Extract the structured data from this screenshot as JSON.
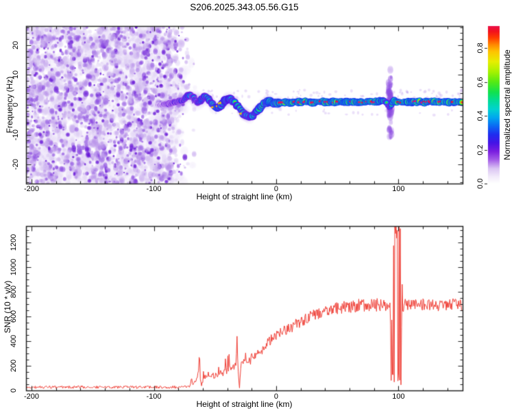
{
  "figure": {
    "title": "S206.2025.343.05.56.G15",
    "background": "#ffffff",
    "axis_color": "#222222"
  },
  "chart_data": [
    {
      "type": "heatmap",
      "name": "spectrogram",
      "xlabel": "Height of straight line (km)",
      "ylabel": "Frequency (Hz)",
      "xlim": [
        -204.5,
        152.4
      ],
      "ylim": [
        -26.4,
        26.4
      ],
      "x_ticks": [
        {
          "v": -200,
          "label": "-200"
        },
        {
          "v": -100,
          "label": "-100"
        },
        {
          "v": 0,
          "label": "0"
        },
        {
          "v": 100,
          "label": "100"
        }
      ],
      "x_minor_step": 20,
      "y_ticks": [
        {
          "v": -20,
          "label": "-20"
        },
        {
          "v": -10,
          "label": "-10"
        },
        {
          "v": 0,
          "label": "0"
        },
        {
          "v": 10,
          "label": "10"
        },
        {
          "v": 20,
          "label": "20"
        }
      ],
      "y_minor_step": 2,
      "colormap_stops": [
        [
          0.0,
          "#ffffff"
        ],
        [
          0.04,
          "#f3ecfb"
        ],
        [
          0.09,
          "#dac4f3"
        ],
        [
          0.14,
          "#a55ee8"
        ],
        [
          0.19,
          "#7a1ee0"
        ],
        [
          0.24,
          "#4513e6"
        ],
        [
          0.29,
          "#1f2df0"
        ],
        [
          0.34,
          "#0b6af4"
        ],
        [
          0.39,
          "#00a8ef"
        ],
        [
          0.44,
          "#00d3cf"
        ],
        [
          0.49,
          "#00dc96"
        ],
        [
          0.54,
          "#12e24d"
        ],
        [
          0.6,
          "#55ea14"
        ],
        [
          0.66,
          "#a7f200"
        ],
        [
          0.72,
          "#e7ee00"
        ],
        [
          0.78,
          "#ffc300"
        ],
        [
          0.82,
          "#ff8800"
        ],
        [
          0.86,
          "#ff3c00"
        ],
        [
          0.9,
          "#f2101f"
        ],
        [
          0.94,
          "#e9135a"
        ],
        [
          1.0,
          "#e41a78"
        ]
      ],
      "colorbar": {
        "label": "Normalized spectral amplitude",
        "vmax": 0.93,
        "ticks": [
          {
            "v": 0.0,
            "label": "0.0"
          },
          {
            "v": 0.2,
            "label": "0.2"
          },
          {
            "v": 0.4,
            "label": "0.4"
          },
          {
            "v": 0.6,
            "label": "0.6"
          },
          {
            "v": 0.8,
            "label": "0.8"
          }
        ]
      },
      "noise_field": {
        "x_range": [
          -204.5,
          -64
        ],
        "dense_until": -93,
        "fade_until": -72,
        "colors": [
          "#d8c6f2",
          "#b38ae8",
          "#8a4ae0",
          "#6716d6"
        ]
      },
      "trace_points": [
        [
          -97,
          0.2,
          0.22
        ],
        [
          -94,
          -0.1,
          0.25
        ],
        [
          -91,
          0.1,
          0.28
        ],
        [
          -88,
          0.3,
          0.34
        ],
        [
          -85,
          0.5,
          0.38
        ],
        [
          -82,
          0.9,
          0.42
        ],
        [
          -79,
          1.3,
          0.46
        ],
        [
          -76,
          1.6,
          0.5
        ],
        [
          -73,
          2.6,
          0.52
        ],
        [
          -70,
          3.2,
          0.55
        ],
        [
          -68,
          2.6,
          0.52
        ],
        [
          -66,
          1.6,
          0.5
        ],
        [
          -64,
          0.6,
          0.52
        ],
        [
          -62,
          1.2,
          0.56
        ],
        [
          -60,
          2.2,
          0.6
        ],
        [
          -58,
          2.8,
          0.6
        ],
        [
          -56,
          2.2,
          0.6
        ],
        [
          -54,
          1.2,
          0.62
        ],
        [
          -52,
          0.2,
          0.66
        ],
        [
          -50,
          -0.6,
          0.72
        ],
        [
          -48,
          -1.2,
          0.78
        ],
        [
          -46,
          -0.6,
          0.72
        ],
        [
          -44,
          0.4,
          0.7
        ],
        [
          -42,
          1.2,
          0.72
        ],
        [
          -40,
          1.8,
          0.72
        ],
        [
          -38,
          2.2,
          0.7
        ],
        [
          -36,
          1.6,
          0.66
        ],
        [
          -34,
          0.8,
          0.64
        ],
        [
          -32,
          -0.2,
          0.66
        ],
        [
          -30,
          -1.2,
          0.7
        ],
        [
          -28,
          -2.2,
          0.72
        ],
        [
          -26,
          -3.2,
          0.7
        ],
        [
          -24,
          -3.8,
          0.66
        ],
        [
          -22,
          -4.2,
          0.62
        ],
        [
          -20,
          -4.0,
          0.64
        ],
        [
          -18,
          -3.2,
          0.68
        ],
        [
          -16,
          -2.2,
          0.72
        ],
        [
          -14,
          -1.2,
          0.76
        ],
        [
          -12,
          -0.4,
          0.8
        ],
        [
          -10,
          0.2,
          0.8
        ],
        [
          -8,
          0.7,
          0.82
        ],
        [
          -6,
          1.0,
          0.84
        ],
        [
          -4,
          0.9,
          0.86
        ],
        [
          -2,
          0.7,
          0.86
        ],
        [
          0,
          0.6,
          0.88
        ],
        [
          4,
          0.9,
          0.9
        ],
        [
          8,
          1.1,
          0.88
        ],
        [
          12,
          0.8,
          0.9
        ],
        [
          16,
          1.0,
          0.9
        ],
        [
          20,
          0.9,
          0.9
        ],
        [
          25,
          1.0,
          0.9
        ],
        [
          30,
          0.9,
          0.91
        ],
        [
          35,
          1.0,
          0.9
        ],
        [
          40,
          0.9,
          0.92
        ],
        [
          45,
          1.0,
          0.9
        ],
        [
          50,
          0.9,
          0.92
        ],
        [
          55,
          1.0,
          0.9
        ],
        [
          60,
          0.9,
          0.92
        ],
        [
          65,
          1.0,
          0.91
        ],
        [
          70,
          0.9,
          0.92
        ],
        [
          75,
          1.0,
          0.91
        ],
        [
          80,
          1.0,
          0.92
        ],
        [
          85,
          1.1,
          0.9
        ],
        [
          88,
          1.4,
          0.78
        ],
        [
          90,
          0.8,
          0.6
        ],
        [
          91.5,
          -0.6,
          0.5
        ],
        [
          93,
          -1.3,
          0.52
        ],
        [
          94.5,
          0.3,
          0.62
        ],
        [
          96,
          1.3,
          0.8
        ],
        [
          97.5,
          1.1,
          0.95
        ],
        [
          99,
          1.0,
          0.9
        ],
        [
          101,
          0.9,
          0.9
        ],
        [
          105,
          1.0,
          0.91
        ],
        [
          110,
          0.9,
          0.92
        ],
        [
          115,
          1.0,
          0.91
        ],
        [
          120,
          0.9,
          0.92
        ],
        [
          125,
          1.0,
          0.91
        ],
        [
          130,
          0.9,
          0.92
        ],
        [
          135,
          1.0,
          0.91
        ],
        [
          140,
          0.9,
          0.92
        ],
        [
          146,
          1.0,
          0.91
        ],
        [
          152.4,
          1.0,
          0.92
        ]
      ],
      "disturbance": {
        "x_center": 93,
        "x_spread": 3.2,
        "f_range": [
          -13,
          13
        ],
        "n_blobs": 80
      },
      "fuzz_band": {
        "x_range": [
          -62,
          152
        ],
        "f_above": [
          2,
          5
        ],
        "f_below": [
          -3.5,
          -1.5
        ],
        "n_blobs": 110
      }
    },
    {
      "type": "line",
      "name": "snr",
      "xlabel": "Height of straight line (km)",
      "ylabel": "SNR (10 * v/v)",
      "xlim": [
        -204.5,
        152.4
      ],
      "ylim": [
        0,
        1333
      ],
      "line_color": "#ee3b32",
      "x_ticks": [
        {
          "v": -200,
          "label": "-200"
        },
        {
          "v": -100,
          "label": "-100"
        },
        {
          "v": 0,
          "label": "0"
        },
        {
          "v": 100,
          "label": "100"
        }
      ],
      "x_minor_step": 20,
      "y_ticks": [
        {
          "v": 0,
          "label": "0"
        },
        {
          "v": 200,
          "label": "200"
        },
        {
          "v": 400,
          "label": "400"
        },
        {
          "v": 600,
          "label": "600"
        },
        {
          "v": 800,
          "label": "800"
        },
        {
          "v": 1000,
          "label": "1000"
        },
        {
          "v": 1200,
          "label": "1200"
        }
      ],
      "y_minor_step": 50,
      "envelope": [
        [
          -204.5,
          25
        ],
        [
          -190,
          27
        ],
        [
          -175,
          25
        ],
        [
          -160,
          28
        ],
        [
          -145,
          26
        ],
        [
          -130,
          27
        ],
        [
          -115,
          26
        ],
        [
          -100,
          27
        ],
        [
          -90,
          26
        ],
        [
          -80,
          27
        ],
        [
          -75,
          28
        ],
        [
          -71,
          34
        ],
        [
          -69,
          85
        ],
        [
          -68,
          55
        ],
        [
          -66,
          70
        ],
        [
          -64,
          120
        ],
        [
          -63,
          235
        ],
        [
          -62,
          70
        ],
        [
          -60,
          85
        ],
        [
          -58,
          105
        ],
        [
          -56,
          95
        ],
        [
          -54,
          100
        ],
        [
          -52,
          125
        ],
        [
          -50,
          115
        ],
        [
          -48,
          125
        ],
        [
          -46,
          135
        ],
        [
          -44,
          150
        ],
        [
          -42,
          145
        ],
        [
          -40,
          165
        ],
        [
          -38,
          175
        ],
        [
          -36,
          185
        ],
        [
          -33,
          205
        ],
        [
          -32,
          430
        ],
        [
          -31,
          140
        ],
        [
          -30,
          12
        ],
        [
          -29,
          185
        ],
        [
          -28,
          230
        ],
        [
          -26,
          255
        ],
        [
          -24,
          235
        ],
        [
          -22,
          255
        ],
        [
          -20,
          270
        ],
        [
          -18,
          285
        ],
        [
          -16,
          300
        ],
        [
          -14,
          295
        ],
        [
          -12,
          320
        ],
        [
          -10,
          350
        ],
        [
          -8,
          375
        ],
        [
          -6,
          395
        ],
        [
          -4,
          415
        ],
        [
          -2,
          430
        ],
        [
          0,
          445
        ],
        [
          3,
          465
        ],
        [
          6,
          480
        ],
        [
          9,
          495
        ],
        [
          12,
          510
        ],
        [
          15,
          530
        ],
        [
          18,
          550
        ],
        [
          21,
          565
        ],
        [
          24,
          580
        ],
        [
          27,
          595
        ],
        [
          30,
          610
        ],
        [
          34,
          625
        ],
        [
          38,
          640
        ],
        [
          42,
          650
        ],
        [
          46,
          660
        ],
        [
          50,
          668
        ],
        [
          55,
          675
        ],
        [
          60,
          682
        ],
        [
          65,
          688
        ],
        [
          70,
          690
        ],
        [
          75,
          693
        ],
        [
          80,
          695
        ],
        [
          85,
          692
        ],
        [
          89,
          694
        ],
        [
          93,
          690
        ],
        [
          103,
          688
        ],
        [
          108,
          692
        ],
        [
          115,
          695
        ],
        [
          125,
          690
        ],
        [
          135,
          696
        ],
        [
          145,
          692
        ],
        [
          152.4,
          697
        ]
      ],
      "burst": {
        "x_range": [
          93.2,
          103.2
        ],
        "core_range": [
          94,
          102.3
        ],
        "hi": [
          1150,
          1360
        ],
        "lo": [
          3,
          135
        ]
      },
      "noise": {
        "baseline_amp": 11,
        "plateau_base": 18,
        "plateau_coeff": 0.05,
        "ramp_range": [
          -70,
          -18
        ],
        "ramp_spike_prob": 0.13,
        "ramp_spike_max": 115
      }
    }
  ]
}
